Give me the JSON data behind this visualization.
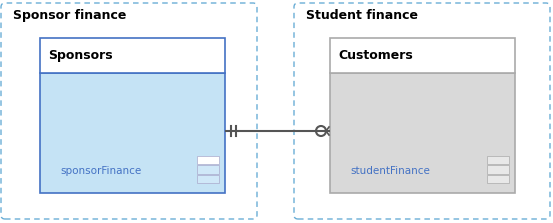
{
  "bg_color": "#ffffff",
  "sponsor_group_label": "Sponsor finance",
  "student_group_label": "Student finance",
  "sponsor_body_color": "#c5e3f5",
  "student_body_color": "#d9d9d9",
  "sponsor_header_color": "#ffffff",
  "student_header_color": "#ffffff",
  "class_border_color_sponsor": "#4472c4",
  "class_border_color_student": "#aaaaaa",
  "sponsor_label": "sponsorFinance",
  "student_label": "studentFinance",
  "group_border_color": "#6baed6",
  "group_label_color": "#000000",
  "connector_color": "#555555",
  "label_color": "#4472c4",
  "label_fontsize": 7.5,
  "title_fontsize": 9,
  "group_label_fontsize": 9
}
